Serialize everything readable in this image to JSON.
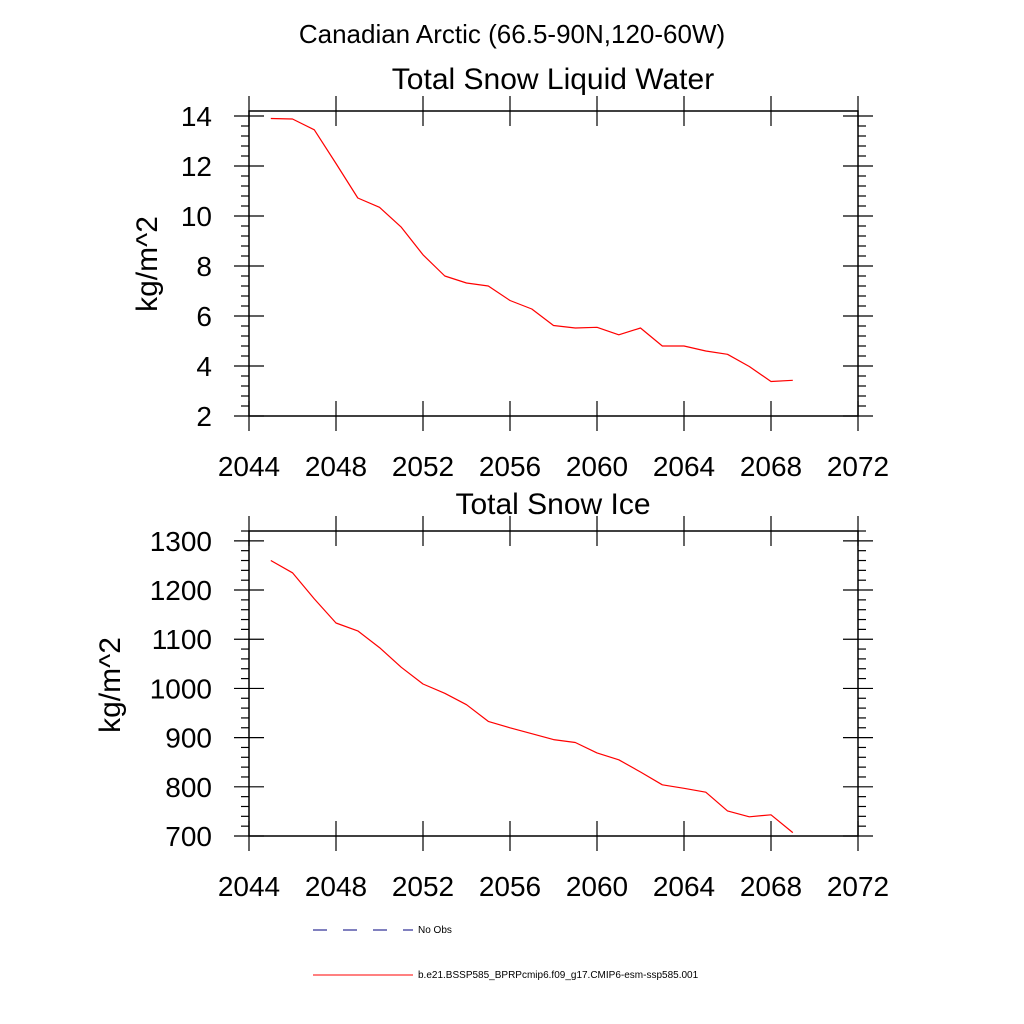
{
  "figure": {
    "suptitle": "Canadian Arctic (66.5-90N,120-60W)"
  },
  "chart_data": [
    {
      "type": "line",
      "title": "Total Snow Liquid Water",
      "xlabel": "",
      "ylabel": "kg/m^2",
      "xlim": [
        2044,
        2072
      ],
      "ylim": [
        2,
        14.2
      ],
      "xticks": [
        2044,
        2048,
        2052,
        2056,
        2060,
        2064,
        2068,
        2072
      ],
      "xtick_labels": [
        "2044",
        "2048",
        "2052",
        "2056",
        "2060",
        "2064",
        "2068",
        "2072"
      ],
      "yticks": [
        2,
        4,
        6,
        8,
        10,
        12,
        14
      ],
      "ytick_labels": [
        "2",
        "4",
        "6",
        "8",
        "10",
        "12",
        "14"
      ],
      "grid": false,
      "series": [
        {
          "name": "b.e21.BSSP585_BPRPcmip6.f09_g17.CMIP6-esm-ssp585.001",
          "color": "#ff0000",
          "x": [
            2045,
            2046,
            2047,
            2048,
            2049,
            2050,
            2051,
            2052,
            2053,
            2054,
            2055,
            2056,
            2057,
            2058,
            2059,
            2060,
            2061,
            2062,
            2063,
            2064,
            2065,
            2066,
            2067,
            2068,
            2069
          ],
          "y": [
            13.9,
            13.88,
            13.45,
            12.1,
            10.72,
            10.35,
            9.55,
            8.45,
            7.6,
            7.32,
            7.2,
            6.62,
            6.28,
            5.62,
            5.52,
            5.55,
            5.25,
            5.52,
            4.8,
            4.8,
            4.6,
            4.47,
            3.98,
            3.38,
            3.43
          ]
        }
      ]
    },
    {
      "type": "line",
      "title": "Total Snow Ice",
      "xlabel": "",
      "ylabel": "kg/m^2",
      "xlim": [
        2044,
        2072
      ],
      "ylim": [
        700,
        1320
      ],
      "xticks": [
        2044,
        2048,
        2052,
        2056,
        2060,
        2064,
        2068,
        2072
      ],
      "xtick_labels": [
        "2044",
        "2048",
        "2052",
        "2056",
        "2060",
        "2064",
        "2068",
        "2072"
      ],
      "yticks": [
        700,
        800,
        900,
        1000,
        1100,
        1200,
        1300
      ],
      "ytick_labels": [
        "700",
        "800",
        "900",
        "1000",
        "1100",
        "1200",
        "1300"
      ],
      "grid": false,
      "series": [
        {
          "name": "b.e21.BSSP585_BPRPcmip6.f09_g17.CMIP6-esm-ssp585.001",
          "color": "#ff0000",
          "x": [
            2045,
            2046,
            2047,
            2048,
            2049,
            2050,
            2051,
            2052,
            2053,
            2054,
            2055,
            2056,
            2057,
            2058,
            2059,
            2060,
            2061,
            2062,
            2063,
            2064,
            2065,
            2066,
            2067,
            2068,
            2069
          ],
          "y": [
            1260,
            1235,
            1182,
            1133,
            1117,
            1083,
            1043,
            1009,
            990,
            967,
            933,
            920,
            908,
            896,
            890,
            869,
            855,
            830,
            804,
            797,
            789,
            751,
            739,
            743,
            707
          ]
        }
      ]
    }
  ],
  "legend": {
    "placement": "bottom",
    "entries": [
      {
        "label": "No Obs",
        "color": "#00007f",
        "style": "dashed"
      },
      {
        "label": "b.e21.BSSP585_BPRPcmip6.f09_g17.CMIP6-esm-ssp585.001",
        "color": "#ff0000",
        "style": "solid"
      }
    ]
  }
}
